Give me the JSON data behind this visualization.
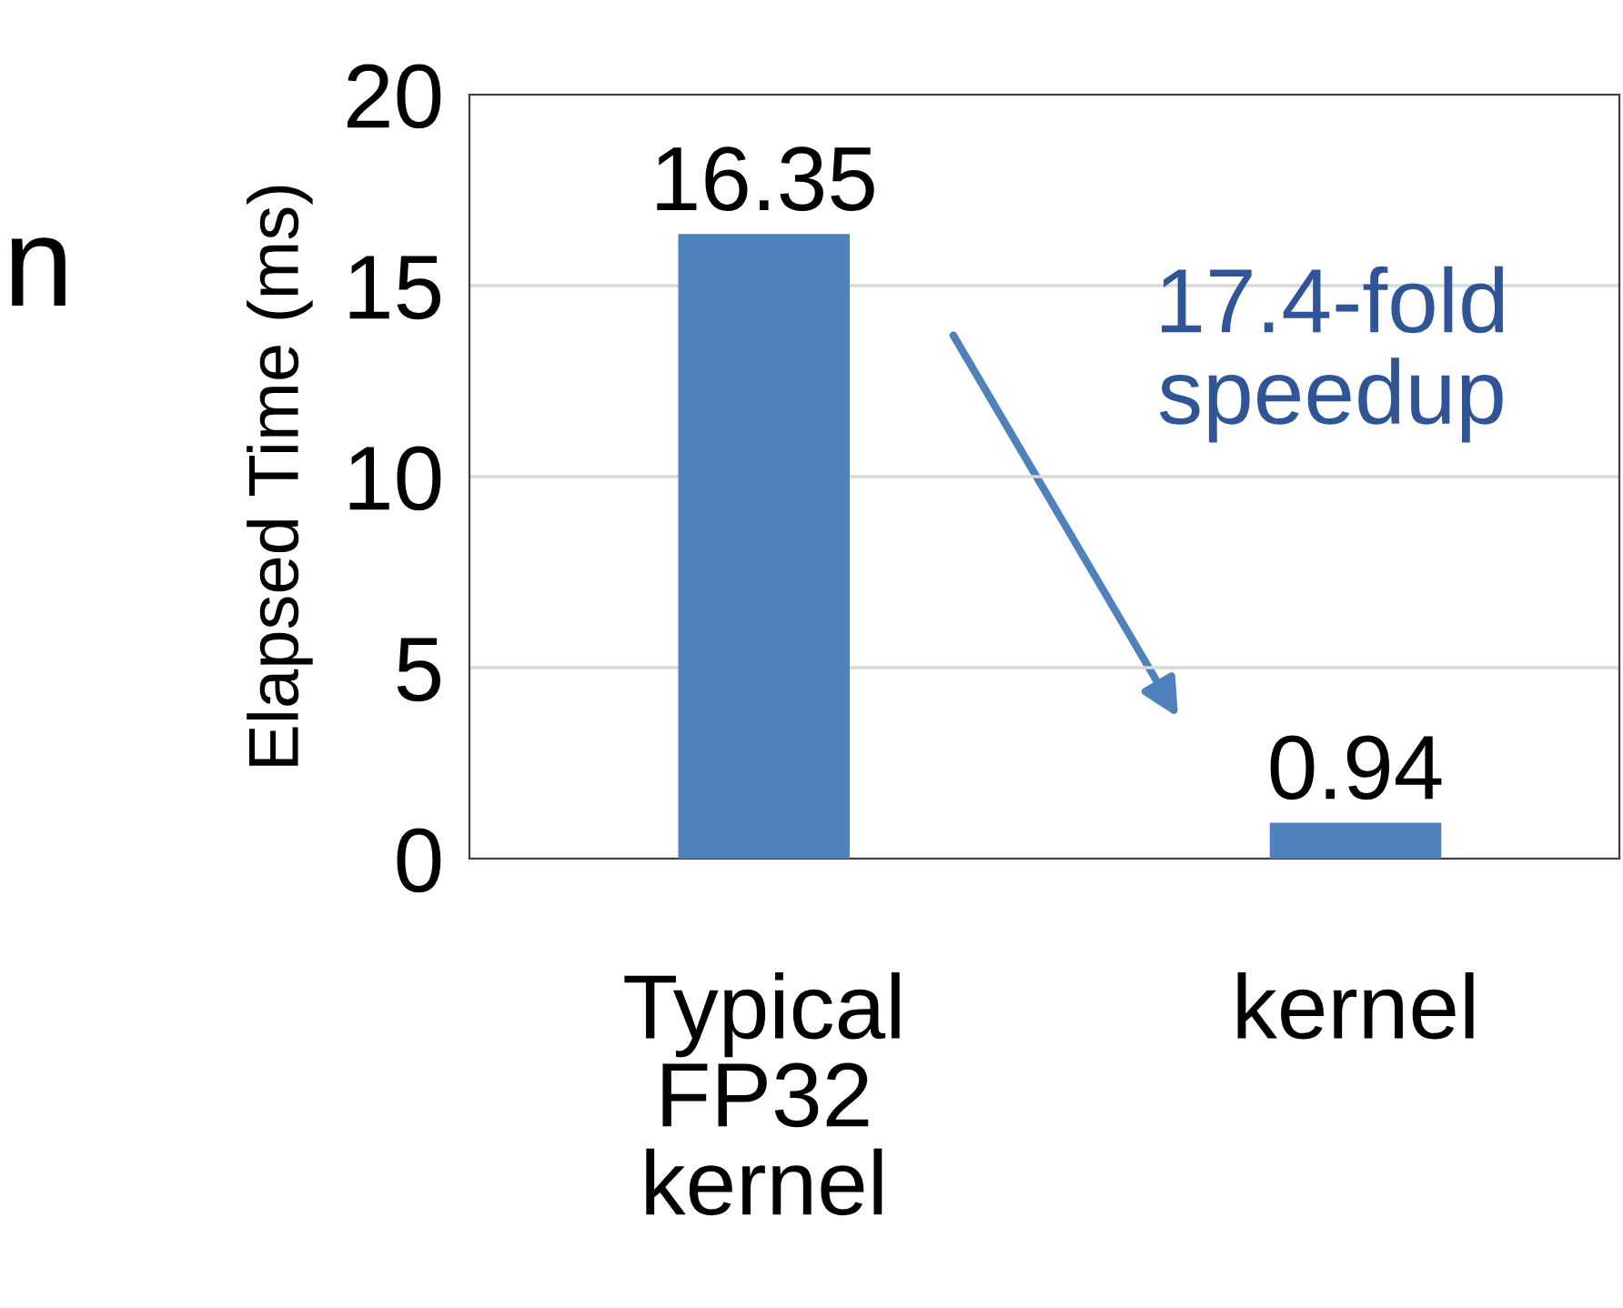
{
  "chart_data": {
    "type": "bar",
    "ylabel": "Elapsed Time (ms)",
    "categories": [
      "Typical\nFP32\nkernel",
      "kernel"
    ],
    "values": [
      16.35,
      0.94
    ],
    "color": "#4f81bd",
    "ylim": [
      0,
      20
    ],
    "yticks": [
      0,
      5,
      10,
      15,
      20
    ],
    "grid": "y",
    "data_labels": true,
    "annotations": [
      "17.4-fold\nspeedup",
      "n"
    ]
  }
}
